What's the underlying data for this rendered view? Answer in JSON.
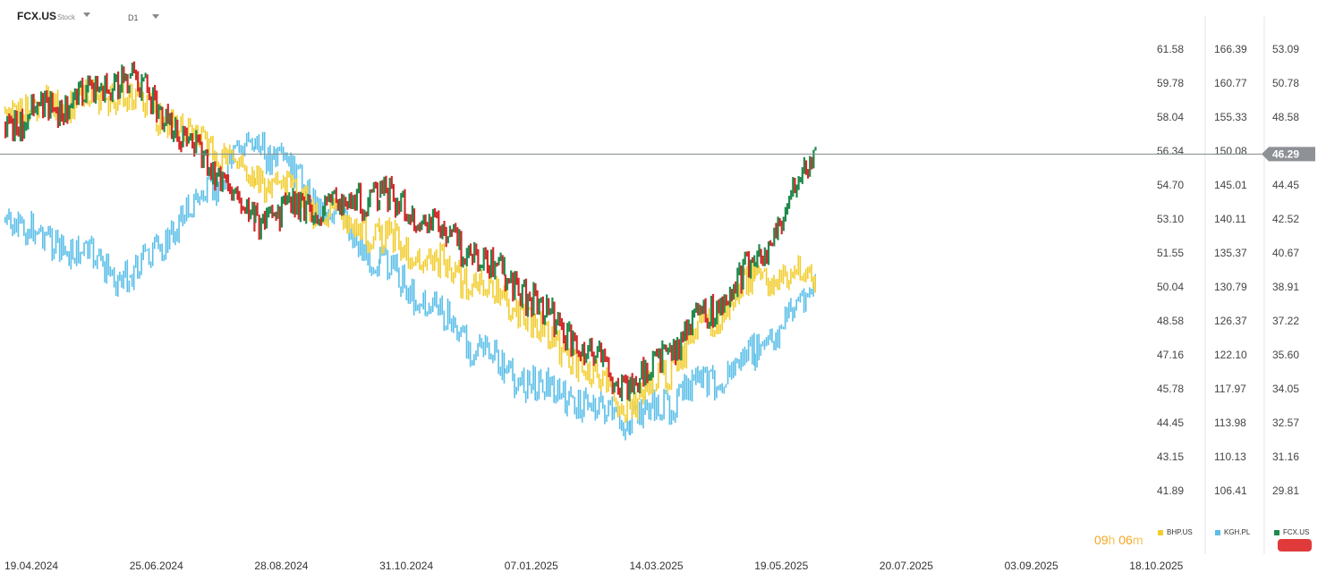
{
  "header": {
    "symbol": "FCX.US",
    "instrument_type": "Stock",
    "interval": "D1"
  },
  "colors": {
    "fcx_up": "#1f8a4c",
    "fcx_down": "#d32a2a",
    "bhp": "#f2cd2e",
    "kgh": "#5bbfe8",
    "price_tag": "#8e9196",
    "red_button": "#e03a3a",
    "timer": "#f5a623"
  },
  "current_price": "46.29",
  "timer": {
    "hours": "09",
    "hours_unit": "h",
    "minutes": "06",
    "minutes_unit": "m"
  },
  "legend": [
    {
      "name": "BHP.US",
      "color": "#f2cd2e"
    },
    {
      "name": "KGH.PL",
      "color": "#5bbfe8"
    },
    {
      "name": "FCX.US",
      "color": "#1f8a4c"
    }
  ],
  "chart_data": {
    "type": "line",
    "x_ticks": [
      "19.04.2024",
      "25.06.2024",
      "28.08.2024",
      "31.10.2024",
      "07.01.2025",
      "14.03.2025",
      "19.05.2025",
      "20.07.2025",
      "03.09.2025",
      "18.10.2025"
    ],
    "y_axes": [
      {
        "series": "BHP.US",
        "ticks": [
          "61.58",
          "59.78",
          "58.04",
          "56.34",
          "54.70",
          "53.10",
          "51.55",
          "50.04",
          "48.58",
          "47.16",
          "45.78",
          "44.45",
          "43.15",
          "41.89"
        ]
      },
      {
        "series": "KGH.PL",
        "ticks": [
          "166.39",
          "160.77",
          "155.33",
          "150.08",
          "145.01",
          "140.11",
          "135.37",
          "130.79",
          "126.37",
          "122.10",
          "117.97",
          "113.98",
          "110.13",
          "106.41"
        ]
      },
      {
        "series": "FCX.US",
        "ticks": [
          "53.09",
          "50.78",
          "48.58",
          "46.29",
          "44.45",
          "42.52",
          "40.67",
          "38.91",
          "37.22",
          "35.60",
          "34.05",
          "32.57",
          "31.16",
          "29.81"
        ]
      }
    ],
    "series": [
      {
        "name": "BHP.US",
        "x": [
          "19.04.2024",
          "25.06.2024",
          "28.08.2024",
          "31.10.2024",
          "07.01.2025",
          "14.03.2025",
          "19.05.2025",
          "18.06.2025"
        ],
        "y": [
          58.3,
          59.2,
          55.0,
          52.3,
          49.5,
          45.0,
          50.5,
          50.4
        ]
      },
      {
        "name": "KGH.PL",
        "x": [
          "19.04.2024",
          "25.06.2024",
          "28.08.2024",
          "31.10.2024",
          "07.01.2025",
          "14.03.2025",
          "19.05.2025",
          "18.06.2025"
        ],
        "y": [
          140.0,
          132.0,
          152.0,
          134.0,
          120.0,
          114.0,
          122.0,
          131.0
        ]
      },
      {
        "name": "FCX.US",
        "x": [
          "19.04.2024",
          "25.06.2024",
          "28.08.2024",
          "31.10.2024",
          "07.01.2025",
          "14.03.2025",
          "19.05.2025",
          "18.06.2025"
        ],
        "y": [
          48.0,
          51.2,
          42.5,
          44.0,
          39.5,
          34.0,
          40.0,
          46.29
        ]
      }
    ]
  }
}
